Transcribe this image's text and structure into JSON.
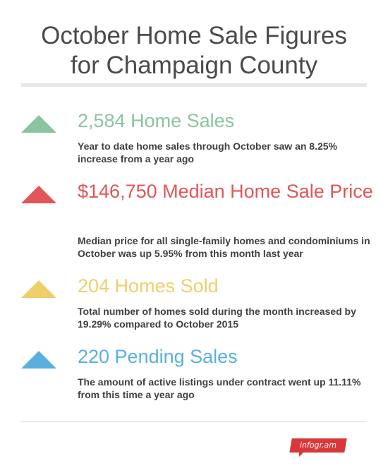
{
  "header": {
    "title_line1": "October Home Sale Figures",
    "title_line2": "for Champaign County"
  },
  "stats": [
    {
      "headline": "2,584 Home Sales",
      "description": "Year to date home sales through October saw an 8.25% increase from a year ago",
      "color": "#8cc3a0",
      "icon": "triangle-up-icon"
    },
    {
      "headline": "$146,750 Median Home Sale Price",
      "description": "Median price for all single-family homes and condominiums in October was up 5.95% from this month last year",
      "color": "#e15659",
      "icon": "triangle-up-icon"
    },
    {
      "headline": "204 Homes Sold",
      "description": "Total number of homes sold during the month increased by 19.29% compared to October 2015",
      "color": "#f0cf6b",
      "icon": "triangle-up-icon"
    },
    {
      "headline": "220 Pending Sales",
      "description": "The amount of active listings under contract went up 11.11% from this time a year ago",
      "color": "#5aafe0",
      "icon": "triangle-up-icon"
    }
  ],
  "footer": {
    "logo_text": "infogr.am",
    "logo_color": "#d9383a"
  }
}
